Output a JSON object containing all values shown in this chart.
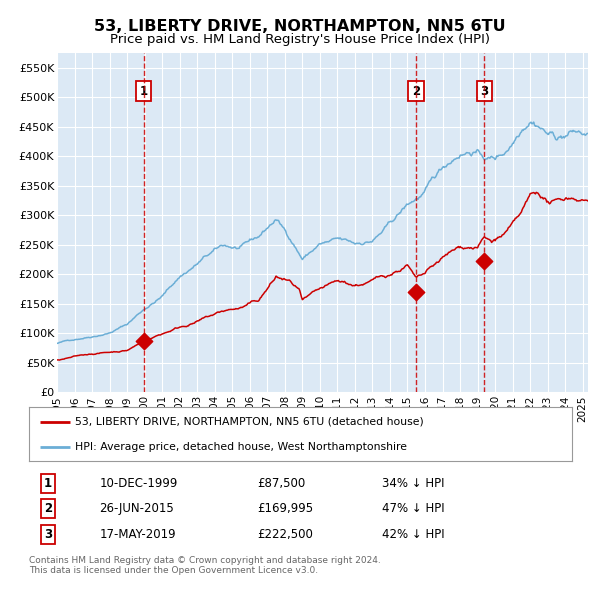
{
  "title": "53, LIBERTY DRIVE, NORTHAMPTON, NN5 6TU",
  "subtitle": "Price paid vs. HM Land Registry's House Price Index (HPI)",
  "title_fontsize": 11.5,
  "subtitle_fontsize": 9.5,
  "background_color": "#dce9f5",
  "grid_color": "#ffffff",
  "ylim": [
    0,
    575000
  ],
  "yticks": [
    0,
    50000,
    100000,
    150000,
    200000,
    250000,
    300000,
    350000,
    400000,
    450000,
    500000,
    550000
  ],
  "ytick_labels": [
    "£0",
    "£50K",
    "£100K",
    "£150K",
    "£200K",
    "£250K",
    "£300K",
    "£350K",
    "£400K",
    "£450K",
    "£500K",
    "£550K"
  ],
  "hpi_color": "#6baed6",
  "price_color": "#cc0000",
  "dashed_line_color": "#cc0000",
  "transaction_dates": [
    1999.94,
    2015.49,
    2019.38
  ],
  "transaction_prices": [
    87500,
    169995,
    222500
  ],
  "transaction_labels": [
    "1",
    "2",
    "3"
  ],
  "legend_line1": "53, LIBERTY DRIVE, NORTHAMPTON, NN5 6TU (detached house)",
  "legend_line2": "HPI: Average price, detached house, West Northamptonshire",
  "table_rows": [
    [
      "1",
      "10-DEC-1999",
      "£87,500",
      "34% ↓ HPI"
    ],
    [
      "2",
      "26-JUN-2015",
      "£169,995",
      "47% ↓ HPI"
    ],
    [
      "3",
      "17-MAY-2019",
      "£222,500",
      "42% ↓ HPI"
    ]
  ],
  "footer_text": "Contains HM Land Registry data © Crown copyright and database right 2024.\nThis data is licensed under the Open Government Licence v3.0.",
  "xmin": 1995.0,
  "xmax": 2025.3
}
